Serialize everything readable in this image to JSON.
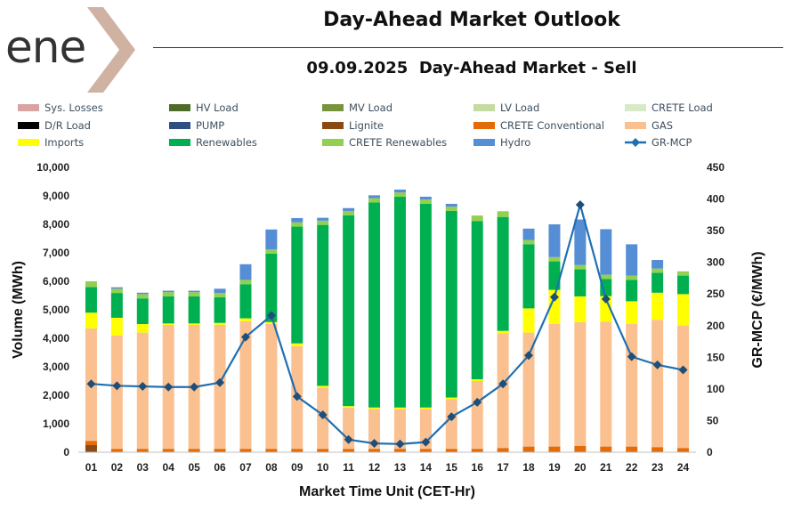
{
  "header": {
    "logo_text": "ene",
    "title": "Day-Ahead Market Outlook",
    "subtitle": "09.09.2025  Day-Ahead Market - Sell"
  },
  "colors": {
    "accent_chevron": "#c8a593"
  },
  "chart_data": {
    "type": "bar",
    "stacked": true,
    "categories": [
      "01",
      "02",
      "03",
      "04",
      "05",
      "06",
      "07",
      "08",
      "09",
      "10",
      "11",
      "12",
      "13",
      "14",
      "15",
      "16",
      "17",
      "18",
      "19",
      "20",
      "21",
      "22",
      "23",
      "24"
    ],
    "xlabel": "Market Time Unit (CET-Hr)",
    "ylabel": "Volume (MWh)",
    "y2label": "GR-MCP (€/MWh)",
    "ylim": [
      0,
      10000
    ],
    "y2lim": [
      0,
      450
    ],
    "yticks": [
      "0",
      "1,000",
      "2,000",
      "3,000",
      "4,000",
      "5,000",
      "6,000",
      "7,000",
      "8,000",
      "9,000",
      "10,000"
    ],
    "y2ticks": [
      "0",
      "50",
      "100",
      "150",
      "200",
      "250",
      "300",
      "350",
      "400",
      "450"
    ],
    "grid": false,
    "legend_position": "top",
    "series": [
      {
        "name": "Sys. Losses",
        "color": "#d9a3a3",
        "values": [
          0,
          0,
          0,
          0,
          0,
          0,
          0,
          0,
          0,
          0,
          0,
          0,
          0,
          0,
          0,
          0,
          0,
          0,
          0,
          0,
          0,
          0,
          0,
          0
        ]
      },
      {
        "name": "HV Load",
        "color": "#4e6b2a",
        "values": [
          0,
          0,
          0,
          0,
          0,
          0,
          0,
          0,
          0,
          0,
          0,
          0,
          0,
          0,
          0,
          0,
          0,
          0,
          0,
          0,
          0,
          0,
          0,
          0
        ]
      },
      {
        "name": "MV Load",
        "color": "#77933c",
        "values": [
          0,
          0,
          0,
          0,
          0,
          0,
          0,
          0,
          0,
          0,
          0,
          0,
          0,
          0,
          0,
          0,
          0,
          0,
          0,
          0,
          0,
          0,
          0,
          0
        ]
      },
      {
        "name": "LV Load",
        "color": "#c4dca0",
        "values": [
          0,
          0,
          0,
          0,
          0,
          0,
          0,
          0,
          0,
          0,
          0,
          0,
          0,
          0,
          0,
          0,
          0,
          0,
          0,
          0,
          0,
          0,
          0,
          0
        ]
      },
      {
        "name": "CRETE Load",
        "color": "#d8e9c6",
        "values": [
          0,
          0,
          0,
          0,
          0,
          0,
          0,
          0,
          0,
          0,
          0,
          0,
          0,
          0,
          0,
          0,
          0,
          0,
          0,
          0,
          0,
          0,
          0,
          0
        ]
      },
      {
        "name": "D/R Load",
        "color": "#000000",
        "values": [
          0,
          0,
          0,
          0,
          0,
          0,
          0,
          0,
          0,
          0,
          0,
          0,
          0,
          0,
          0,
          0,
          0,
          0,
          0,
          0,
          0,
          0,
          0,
          0
        ]
      },
      {
        "name": "PUMP",
        "color": "#2e4f80",
        "values": [
          0,
          0,
          0,
          0,
          0,
          0,
          0,
          0,
          0,
          0,
          0,
          0,
          0,
          0,
          0,
          0,
          0,
          0,
          0,
          0,
          0,
          0,
          0,
          0
        ]
      },
      {
        "name": "Lignite",
        "color": "#8b4a12",
        "values": [
          250,
          0,
          0,
          0,
          0,
          0,
          0,
          0,
          0,
          0,
          0,
          0,
          0,
          0,
          0,
          0,
          0,
          0,
          0,
          0,
          0,
          0,
          0,
          0
        ]
      },
      {
        "name": "CRETE Conventional",
        "color": "#e36c09",
        "values": [
          150,
          120,
          120,
          120,
          120,
          120,
          120,
          120,
          120,
          120,
          120,
          120,
          120,
          120,
          120,
          120,
          150,
          200,
          200,
          220,
          200,
          200,
          180,
          150
        ]
      },
      {
        "name": "GAS",
        "color": "#fac090",
        "values": [
          3950,
          3980,
          4080,
          4350,
          4350,
          4350,
          4480,
          4380,
          3600,
          2150,
          1450,
          1400,
          1400,
          1400,
          1750,
          2380,
          4030,
          4000,
          4300,
          4350,
          4380,
          4300,
          4470,
          4300
        ]
      },
      {
        "name": "Imports",
        "color": "#ffff00",
        "values": [
          550,
          620,
          300,
          50,
          50,
          70,
          100,
          70,
          100,
          60,
          50,
          50,
          50,
          50,
          50,
          60,
          80,
          850,
          1200,
          900,
          900,
          800,
          950,
          1100
        ]
      },
      {
        "name": "Renewables",
        "color": "#00b050",
        "values": [
          900,
          870,
          900,
          950,
          950,
          900,
          1200,
          2400,
          4100,
          5650,
          6700,
          7200,
          7400,
          7150,
          6550,
          5550,
          4000,
          2250,
          1000,
          950,
          600,
          750,
          700,
          650
        ]
      },
      {
        "name": "CRETE Renewables",
        "color": "#92d050",
        "values": [
          200,
          150,
          150,
          150,
          150,
          150,
          150,
          150,
          150,
          150,
          150,
          150,
          150,
          150,
          150,
          200,
          200,
          150,
          150,
          150,
          150,
          150,
          150,
          150
        ]
      },
      {
        "name": "Hydro",
        "color": "#558ed5",
        "values": [
          0,
          50,
          50,
          50,
          50,
          150,
          550,
          700,
          150,
          100,
          100,
          100,
          100,
          100,
          100,
          0,
          0,
          400,
          1150,
          1600,
          1600,
          1100,
          300,
          0
        ]
      }
    ],
    "line_series": [
      {
        "name": "GR-MCP",
        "color": "#1f6fb2",
        "axis": "right",
        "values": [
          108,
          105,
          104,
          103,
          103,
          110,
          182,
          216,
          88,
          59,
          20,
          14,
          13,
          16,
          56,
          79,
          108,
          153,
          245,
          391,
          242,
          151,
          138,
          130
        ]
      }
    ]
  }
}
